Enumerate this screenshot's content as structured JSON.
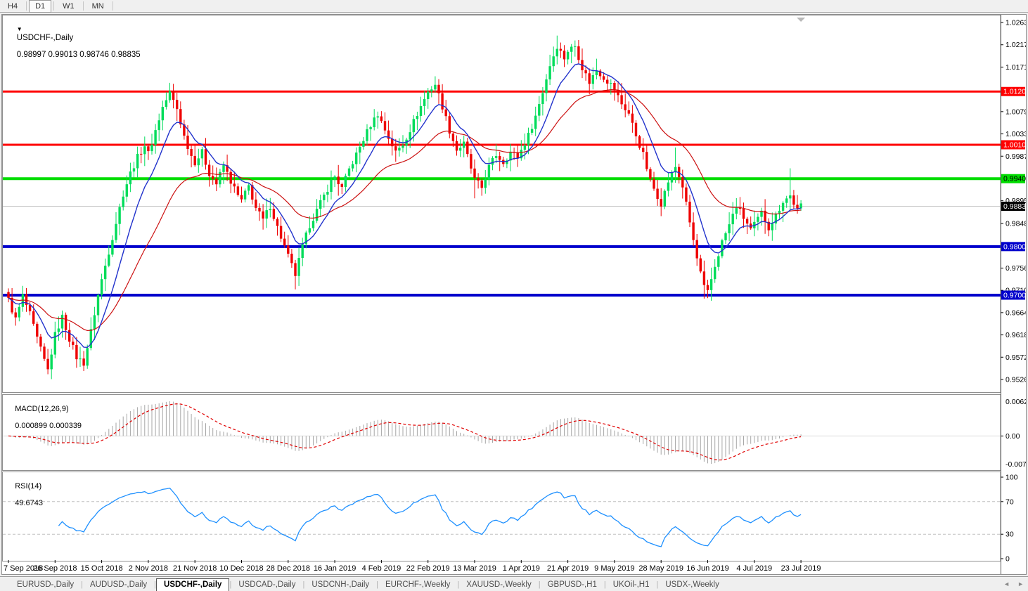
{
  "toolbar": {
    "timeframes": [
      {
        "label": "H4",
        "active": false
      },
      {
        "label": "D1",
        "active": true
      },
      {
        "label": "W1",
        "active": false
      },
      {
        "label": "MN",
        "active": false
      }
    ]
  },
  "chart": {
    "dropdown_arrow": "▼",
    "symbol_label": "USDCHF-,Daily",
    "ohlc_values": "0.98997 0.99013 0.98746 0.98835"
  },
  "chart_data": {
    "type": "candlestick",
    "title": "USDCHF-,Daily",
    "timeframe": "Daily",
    "candle_count": 222,
    "x_tick_step": 13,
    "x_tick_labels": [
      "7 Sep 2018",
      "26 Sep 2018",
      "15 Oct 2018",
      "2 Nov 2018",
      "21 Nov 2018",
      "10 Dec 2018",
      "28 Dec 2018",
      "16 Jan 2019",
      "4 Feb 2019",
      "22 Feb 2019",
      "13 Mar 2019",
      "1 Apr 2019",
      "21 Apr 2019",
      "9 May 2019",
      "28 May 2019",
      "16 Jun 2019",
      "4 Jul 2019",
      "23 Jul 2019"
    ],
    "price_axis_ticks": [
      "1.02630",
      "1.02170",
      "1.01710",
      "1.00790",
      "1.00330",
      "0.99870",
      "0.98950",
      "0.98480",
      "0.97560",
      "0.97100",
      "0.96640",
      "0.96180",
      "0.95720",
      "0.95260"
    ],
    "price_range": {
      "top": 1.02761,
      "bottom": 0.95013
    },
    "up_color": "#00DC5A",
    "down_color": "#EE0000",
    "ma_fast": {
      "period": 10,
      "color": "#2233CC"
    },
    "ma_slow": {
      "period": 30,
      "color": "#CC1111"
    },
    "levels": [
      {
        "price": 1.01205,
        "label": "1.01205",
        "color": "#FF0000",
        "width": 3,
        "text_color": "#FFFFFF"
      },
      {
        "price": 1.00106,
        "label": "1.00106",
        "color": "#FF0000",
        "width": 3,
        "text_color": "#FFFFFF"
      },
      {
        "price": 0.99406,
        "label": "0.99406",
        "color": "#00DD00",
        "width": 4,
        "text_color": "#000000"
      },
      {
        "price": 0.98004,
        "label": "0.98004",
        "color": "#0000CC",
        "width": 4,
        "text_color": "#FFFFFF"
      },
      {
        "price": 0.97001,
        "label": "0.97001",
        "color": "#0000CC",
        "width": 4,
        "text_color": "#FFFFFF"
      }
    ],
    "current_price": {
      "value": 0.98835,
      "label": "0.98835",
      "line_color": "#C0C0C0",
      "label_bg": "#000000",
      "label_text": "#FFFFFF"
    },
    "close_anchors": [
      [
        0,
        0.969
      ],
      [
        2,
        0.965
      ],
      [
        4,
        0.9698
      ],
      [
        6,
        0.966
      ],
      [
        8,
        0.961
      ],
      [
        10,
        0.9565
      ],
      [
        11,
        0.9545
      ],
      [
        13,
        0.9618
      ],
      [
        15,
        0.9655
      ],
      [
        17,
        0.961
      ],
      [
        19,
        0.9572
      ],
      [
        21,
        0.956
      ],
      [
        23,
        0.9625
      ],
      [
        25,
        0.97
      ],
      [
        26,
        0.9732
      ],
      [
        28,
        0.979
      ],
      [
        30,
        0.985
      ],
      [
        32,
        0.991
      ],
      [
        34,
        0.9952
      ],
      [
        36,
        0.9985
      ],
      [
        38,
        1.001
      ],
      [
        39,
        0.9992
      ],
      [
        41,
        1.004
      ],
      [
        43,
        1.0088
      ],
      [
        45,
        1.0118
      ],
      [
        47,
        1.0085
      ],
      [
        49,
        1.0028
      ],
      [
        51,
        0.9988
      ],
      [
        52,
        0.9975
      ],
      [
        54,
        0.9995
      ],
      [
        56,
        0.9952
      ],
      [
        58,
        0.993
      ],
      [
        60,
        0.9968
      ],
      [
        62,
        0.9935
      ],
      [
        64,
        0.9905
      ],
      [
        65,
        0.9895
      ],
      [
        67,
        0.9925
      ],
      [
        69,
        0.988
      ],
      [
        71,
        0.9855
      ],
      [
        73,
        0.9885
      ],
      [
        75,
        0.984
      ],
      [
        77,
        0.98
      ],
      [
        78,
        0.978
      ],
      [
        80,
        0.9742
      ],
      [
        82,
        0.98
      ],
      [
        84,
        0.9845
      ],
      [
        86,
        0.9875
      ],
      [
        88,
        0.9905
      ],
      [
        90,
        0.9935
      ],
      [
        91,
        0.9945
      ],
      [
        93,
        0.992
      ],
      [
        95,
        0.996
      ],
      [
        97,
        0.999
      ],
      [
        99,
        1.0022
      ],
      [
        101,
        1.0052
      ],
      [
        103,
        1.0075
      ],
      [
        104,
        1.0058
      ],
      [
        106,
        1.0025
      ],
      [
        108,
        0.9995
      ],
      [
        110,
        1.0012
      ],
      [
        112,
        1.0042
      ],
      [
        114,
        1.0075
      ],
      [
        116,
        1.0105
      ],
      [
        117,
        1.012
      ],
      [
        119,
        1.0136
      ],
      [
        121,
        1.009
      ],
      [
        123,
        1.004
      ],
      [
        125,
        1.0
      ],
      [
        127,
        1.0012
      ],
      [
        129,
        0.9962
      ],
      [
        130,
        0.9938
      ],
      [
        132,
        0.9922
      ],
      [
        134,
        0.9965
      ],
      [
        136,
        0.999
      ],
      [
        138,
        0.9975
      ],
      [
        140,
        0.9995
      ],
      [
        142,
        0.9985
      ],
      [
        143,
        1.0
      ],
      [
        145,
        1.003
      ],
      [
        147,
        1.007
      ],
      [
        149,
        1.012
      ],
      [
        151,
        1.0175
      ],
      [
        153,
        1.0215
      ],
      [
        155,
        1.019
      ],
      [
        156,
        1.0205
      ],
      [
        158,
        1.0215
      ],
      [
        160,
        1.017
      ],
      [
        162,
        1.014
      ],
      [
        164,
        1.0165
      ],
      [
        166,
        1.015
      ],
      [
        168,
        1.0135
      ],
      [
        169,
        1.0125
      ],
      [
        171,
        1.0095
      ],
      [
        173,
        1.0075
      ],
      [
        175,
        1.003
      ],
      [
        177,
        0.999
      ],
      [
        179,
        0.9935
      ],
      [
        181,
        0.9905
      ],
      [
        182,
        0.989
      ],
      [
        184,
        0.9935
      ],
      [
        186,
        0.9965
      ],
      [
        188,
        0.9925
      ],
      [
        190,
        0.985
      ],
      [
        192,
        0.9775
      ],
      [
        194,
        0.9715
      ],
      [
        195,
        0.9705
      ],
      [
        197,
        0.976
      ],
      [
        199,
        0.981
      ],
      [
        201,
        0.9845
      ],
      [
        203,
        0.9885
      ],
      [
        205,
        0.986
      ],
      [
        207,
        0.9835
      ],
      [
        208,
        0.9845
      ],
      [
        210,
        0.987
      ],
      [
        212,
        0.984
      ],
      [
        214,
        0.9865
      ],
      [
        216,
        0.9895
      ],
      [
        218,
        0.9905
      ],
      [
        220,
        0.9875
      ],
      [
        221,
        0.9884
      ]
    ],
    "wick_overrides": [
      [
        45,
        "h",
        1.0138
      ],
      [
        80,
        "l",
        0.9712
      ],
      [
        119,
        "h",
        1.0152
      ],
      [
        130,
        "l",
        0.99
      ],
      [
        153,
        "h",
        1.0236
      ],
      [
        158,
        "h",
        1.0226
      ],
      [
        186,
        "h",
        1.0005
      ],
      [
        194,
        "l",
        0.9693
      ],
      [
        195,
        "l",
        0.9694
      ],
      [
        218,
        "h",
        0.9962
      ]
    ],
    "macd": {
      "name": "MACD(12,26,9)",
      "values": "0.000899 0.000339",
      "params": [
        12,
        26,
        9
      ],
      "axis_labels": [
        "0.006286",
        "0.00",
        "-0.00762"
      ],
      "hist_color": "#A6A6A6",
      "signal_color": "#E00000"
    },
    "rsi": {
      "name": "RSI(14)",
      "value": "49.6743",
      "period": 14,
      "levels": [
        70,
        30
      ],
      "axis_labels": [
        "100",
        "70",
        "30",
        "0"
      ],
      "line_color": "#1E90FF",
      "level_line_color": "#C0C0C0"
    }
  },
  "tabs": {
    "items": [
      {
        "label": "EURUSD-,Daily",
        "active": false
      },
      {
        "label": "AUDUSD-,Daily",
        "active": false
      },
      {
        "label": "USDCHF-,Daily",
        "active": true
      },
      {
        "label": "USDCAD-,Daily",
        "active": false
      },
      {
        "label": "USDCNH-,Daily",
        "active": false
      },
      {
        "label": "EURCHF-,Weekly",
        "active": false
      },
      {
        "label": "XAUUSD-,Weekly",
        "active": false
      },
      {
        "label": "GBPUSD-,H1",
        "active": false
      },
      {
        "label": "UKOil-,H1",
        "active": false
      },
      {
        "label": "USDX-,Weekly",
        "active": false
      }
    ],
    "scroll_left": "◄",
    "scroll_right": "►"
  }
}
